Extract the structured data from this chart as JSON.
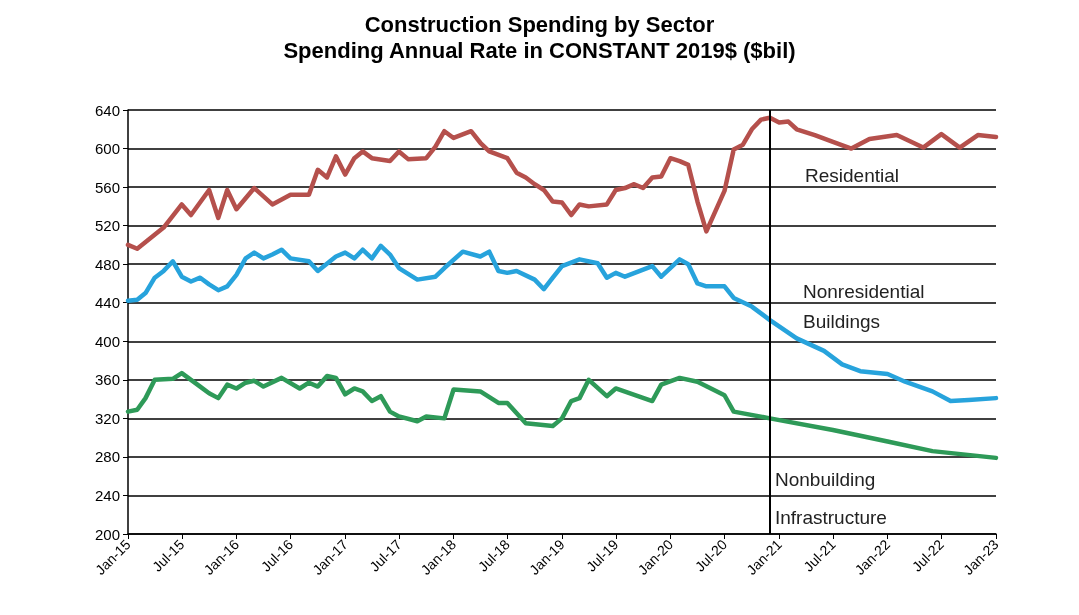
{
  "chart_data": {
    "type": "line",
    "title": "Construction Spending by Sector",
    "subtitle": "Spending Annual Rate in CONSTANT 2019$ ($bil)",
    "xlim": [
      "2015-01",
      "2023-01"
    ],
    "xticks": [
      {
        "value": "2015-01",
        "label": "Jan-15"
      },
      {
        "value": "2015-07",
        "label": "Jul-15"
      },
      {
        "value": "2016-01",
        "label": "Jan-16"
      },
      {
        "value": "2016-07",
        "label": "Jul-16"
      },
      {
        "value": "2017-01",
        "label": "Jan-17"
      },
      {
        "value": "2017-07",
        "label": "Jul-17"
      },
      {
        "value": "2018-01",
        "label": "Jan-18"
      },
      {
        "value": "2018-07",
        "label": "Jul-18"
      },
      {
        "value": "2019-01",
        "label": "Jan-19"
      },
      {
        "value": "2019-07",
        "label": "Jul-19"
      },
      {
        "value": "2020-01",
        "label": "Jan-20"
      },
      {
        "value": "2020-07",
        "label": "Jul-20"
      },
      {
        "value": "2021-01",
        "label": "Jan-21"
      },
      {
        "value": "2021-07",
        "label": "Jul-21"
      },
      {
        "value": "2022-01",
        "label": "Jan-22"
      },
      {
        "value": "2022-07",
        "label": "Jul-22"
      },
      {
        "value": "2023-01",
        "label": "Jan-23"
      }
    ],
    "ylim": [
      200,
      640
    ],
    "yticks": [
      200,
      240,
      280,
      320,
      360,
      400,
      440,
      480,
      520,
      560,
      600,
      640
    ],
    "grid": "y",
    "legend": false,
    "marker": "none",
    "line_style": "solid",
    "ref_lines": [
      {
        "axis": "x",
        "value": "2020-12",
        "color": "#000000"
      }
    ],
    "series": [
      {
        "name": "Residential",
        "color": "#b5504c",
        "x": [
          "2015-01",
          "2015-02",
          "2015-05",
          "2015-07",
          "2015-08",
          "2015-10",
          "2015-11",
          "2015-12",
          "2016-01",
          "2016-03",
          "2016-05",
          "2016-07",
          "2016-09",
          "2016-10",
          "2016-11",
          "2016-12",
          "2017-01",
          "2017-02",
          "2017-03",
          "2017-04",
          "2017-06",
          "2017-07",
          "2017-08",
          "2017-10",
          "2017-11",
          "2017-12",
          "2018-01",
          "2018-03",
          "2018-04",
          "2018-05",
          "2018-07",
          "2018-08",
          "2018-09",
          "2018-10",
          "2018-11",
          "2018-12",
          "2019-01",
          "2019-02",
          "2019-03",
          "2019-04",
          "2019-06",
          "2019-07",
          "2019-08",
          "2019-09",
          "2019-10",
          "2019-11",
          "2019-12",
          "2020-01",
          "2020-02",
          "2020-03",
          "2020-04",
          "2020-05",
          "2020-07",
          "2020-08",
          "2020-09",
          "2020-10",
          "2020-11",
          "2020-12",
          "2021-01",
          "2021-02",
          "2021-03",
          "2021-05",
          "2021-07",
          "2021-09",
          "2021-11",
          "2022-02",
          "2022-05",
          "2022-07",
          "2022-09",
          "2022-11",
          "2023-01"
        ],
        "values": [
          500,
          496,
          518,
          542,
          531,
          557,
          528,
          557,
          537,
          559,
          542,
          552,
          552,
          578,
          570,
          592,
          573,
          590,
          597,
          590,
          587,
          597,
          589,
          590,
          602,
          618,
          611,
          618,
          606,
          597,
          590,
          575,
          570,
          563,
          557,
          545,
          544,
          531,
          542,
          540,
          542,
          557,
          559,
          563,
          559,
          570,
          571,
          590,
          587,
          583,
          545,
          514,
          556,
          599,
          604,
          620,
          630,
          632,
          627,
          628,
          620,
          614,
          607,
          600,
          610,
          614,
          601,
          615,
          601,
          614,
          612
        ]
      },
      {
        "name": "Nonresidential Buildings",
        "color": "#27a3dc",
        "x": [
          "2015-01",
          "2015-02",
          "2015-03",
          "2015-04",
          "2015-05",
          "2015-06",
          "2015-07",
          "2015-08",
          "2015-09",
          "2015-10",
          "2015-11",
          "2015-12",
          "2016-01",
          "2016-02",
          "2016-03",
          "2016-04",
          "2016-05",
          "2016-06",
          "2016-07",
          "2016-09",
          "2016-10",
          "2016-12",
          "2017-01",
          "2017-02",
          "2017-03",
          "2017-04",
          "2017-05",
          "2017-06",
          "2017-07",
          "2017-09",
          "2017-11",
          "2017-12",
          "2018-02",
          "2018-04",
          "2018-05",
          "2018-06",
          "2018-07",
          "2018-08",
          "2018-10",
          "2018-11",
          "2018-12",
          "2019-01",
          "2019-03",
          "2019-05",
          "2019-06",
          "2019-07",
          "2019-08",
          "2019-11",
          "2019-12",
          "2020-02",
          "2020-03",
          "2020-04",
          "2020-05",
          "2020-07",
          "2020-08",
          "2020-10",
          "2020-12",
          "2021-03",
          "2021-06",
          "2021-08",
          "2021-10",
          "2022-01",
          "2022-03",
          "2022-06",
          "2022-08",
          "2022-10",
          "2023-01"
        ],
        "values": [
          442,
          443,
          450,
          466,
          473,
          483,
          467,
          462,
          466,
          459,
          453,
          457,
          469,
          486,
          492,
          486,
          490,
          495,
          486,
          483,
          473,
          488,
          492,
          486,
          495,
          486,
          499,
          490,
          476,
          464,
          467,
          476,
          493,
          488,
          493,
          473,
          471,
          473,
          464,
          454,
          466,
          478,
          485,
          481,
          466,
          471,
          467,
          478,
          467,
          485,
          480,
          460,
          457,
          457,
          445,
          436,
          422,
          403,
          390,
          376,
          369,
          366,
          358,
          348,
          338,
          339,
          341
        ]
      },
      {
        "name": "Nonbuilding Infrastructure",
        "color": "#2e9a58",
        "x": [
          "2015-01",
          "2015-02",
          "2015-03",
          "2015-04",
          "2015-06",
          "2015-07",
          "2015-08",
          "2015-09",
          "2015-10",
          "2015-11",
          "2015-12",
          "2016-01",
          "2016-02",
          "2016-03",
          "2016-04",
          "2016-06",
          "2016-08",
          "2016-09",
          "2016-10",
          "2016-11",
          "2016-12",
          "2017-01",
          "2017-02",
          "2017-03",
          "2017-04",
          "2017-05",
          "2017-06",
          "2017-07",
          "2017-09",
          "2017-10",
          "2017-12",
          "2018-01",
          "2018-04",
          "2018-06",
          "2018-07",
          "2018-09",
          "2018-12",
          "2019-01",
          "2019-02",
          "2019-03",
          "2019-04",
          "2019-06",
          "2019-07",
          "2019-11",
          "2019-12",
          "2020-02",
          "2020-04",
          "2020-07",
          "2020-08",
          "2020-12",
          "2021-07",
          "2022-01",
          "2022-06",
          "2023-01"
        ],
        "values": [
          327,
          329,
          341,
          360,
          361,
          367,
          360,
          353,
          346,
          341,
          355,
          351,
          357,
          359,
          353,
          362,
          351,
          357,
          353,
          364,
          362,
          345,
          351,
          348,
          338,
          343,
          327,
          322,
          317,
          322,
          320,
          350,
          348,
          336,
          336,
          315,
          312,
          320,
          338,
          341,
          360,
          343,
          351,
          338,
          355,
          362,
          358,
          344,
          327,
          320,
          308,
          296,
          286,
          279
        ]
      }
    ]
  }
}
